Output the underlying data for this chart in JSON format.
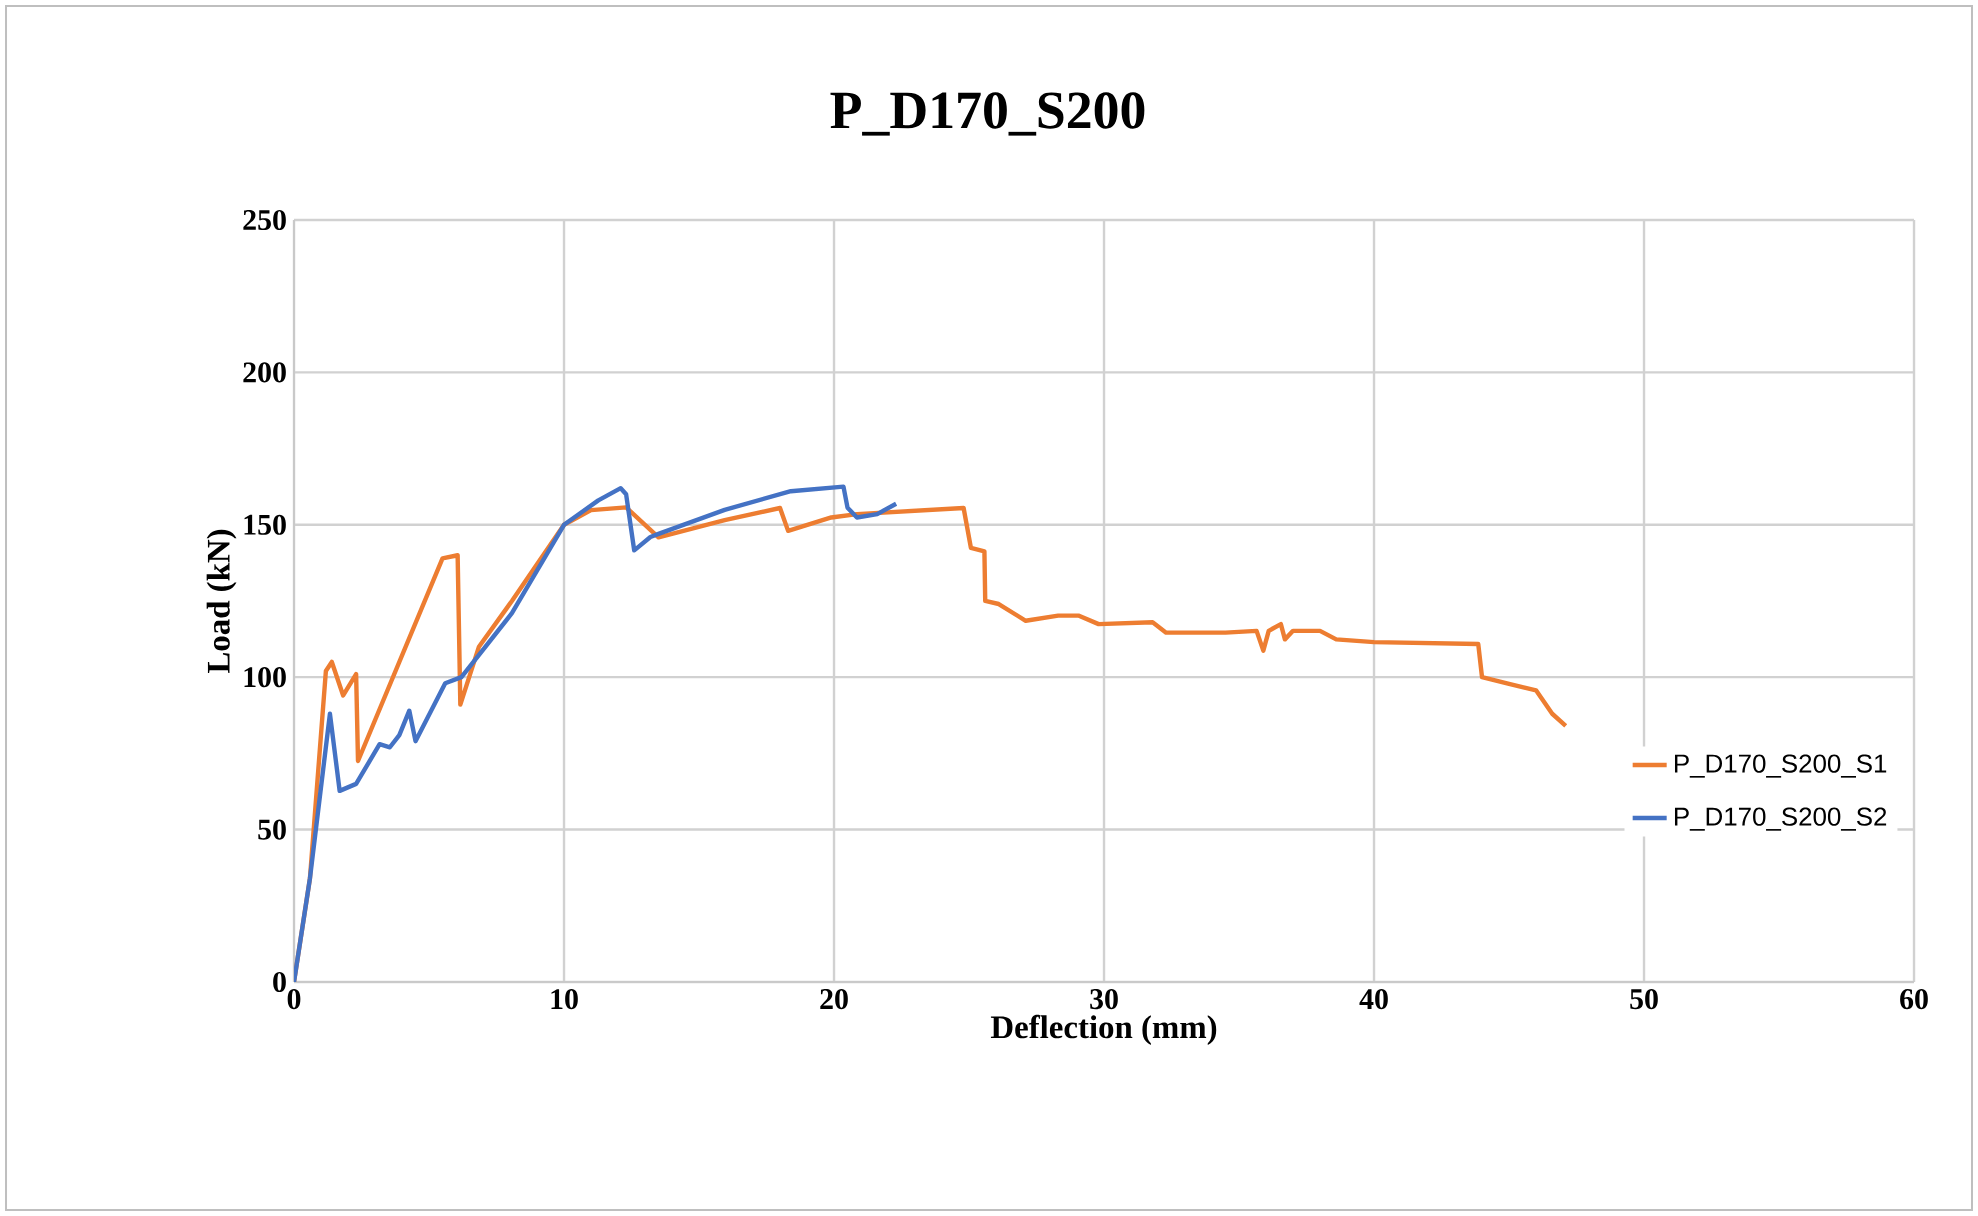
{
  "chart_data": {
    "type": "line",
    "title": "P_D170_S200",
    "xlabel": "Deflection (mm)",
    "ylabel": "Load (kN)",
    "xlim": [
      0,
      60
    ],
    "ylim": [
      0,
      250
    ],
    "xticks": [
      0,
      10,
      20,
      30,
      40,
      50,
      60
    ],
    "yticks": [
      0,
      50,
      100,
      150,
      200,
      250
    ],
    "grid": true,
    "legend": "right",
    "marker": "none",
    "line_style": "solid",
    "series": [
      {
        "name": "P_D170_S200_S1",
        "color": "#ed7d31",
        "x": [
          0,
          0.59,
          1.18,
          1.4,
          1.82,
          2.3,
          2.37,
          5.5,
          6.06,
          6.16,
          6.85,
          8.07,
          10,
          11.0,
          12.3,
          13.5,
          15.95,
          18.0,
          18.3,
          19.9,
          20.85,
          24.8,
          25.07,
          25.57,
          25.6,
          26.1,
          27.1,
          28.3,
          29.05,
          29.8,
          31.8,
          32.3,
          34.5,
          35.65,
          35.9,
          36.1,
          36.55,
          36.7,
          37.0,
          38.0,
          38.6,
          40,
          43.86,
          44.0,
          45.0,
          46.0,
          46.6,
          47.1
        ],
        "values": [
          0,
          34,
          102,
          105,
          94,
          101,
          72.5,
          139,
          140,
          91,
          110,
          125,
          150,
          154.8,
          155.7,
          145.9,
          151.5,
          155.5,
          148,
          152.4,
          153.5,
          155.5,
          142.4,
          141.3,
          125,
          124,
          118.5,
          120.2,
          120.2,
          117.4,
          118,
          114.6,
          114.6,
          115.2,
          108.7,
          115.2,
          117.4,
          112.4,
          115.2,
          115.2,
          112.4,
          111.5,
          110.9,
          100,
          97.8,
          95.7,
          88,
          84
        ]
      },
      {
        "name": "P_D170_S200_S2",
        "color": "#4472c4",
        "x": [
          0,
          0.59,
          1.33,
          1.69,
          2.3,
          3.17,
          3.55,
          3.9,
          4.27,
          4.5,
          5.6,
          6.2,
          8.07,
          10,
          11.27,
          12.1,
          12.3,
          12.6,
          13.2,
          13.5,
          15.95,
          18.4,
          20.35,
          20.5,
          20.85,
          21.6,
          22.3
        ],
        "values": [
          0,
          34,
          88,
          62.7,
          65,
          78,
          77,
          81,
          89,
          79,
          98,
          100,
          121,
          150,
          158,
          162,
          160,
          141.6,
          146,
          147,
          154.9,
          161,
          162.5,
          155.6,
          152.4,
          153.5,
          156.9
        ]
      }
    ]
  }
}
